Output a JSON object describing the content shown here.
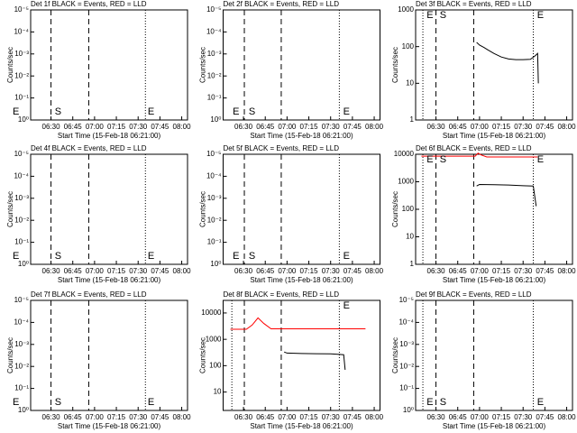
{
  "chart_data": [
    {
      "type": "line",
      "title": "Det 1f BLACK = Events, RED = LLD",
      "ylabel": "Counts/sec",
      "xlabel": "Start Time (15-Feb-18 06:21:00)",
      "log": true,
      "xlim": [
        376,
        484
      ],
      "xticks": [
        {
          "value": 390,
          "label": "06:30"
        },
        {
          "value": 405,
          "label": "06:45"
        },
        {
          "value": 420,
          "label": "07:00"
        },
        {
          "value": 435,
          "label": "07:15"
        },
        {
          "value": 450,
          "label": "07:30"
        },
        {
          "value": 465,
          "label": "07:45"
        },
        {
          "value": 480,
          "label": "08:00"
        }
      ],
      "ylim": [
        1,
        1e-05
      ],
      "yticks": [
        {
          "value": 1,
          "label": "10⁰"
        },
        {
          "value": 0.1,
          "label": "10⁻¹"
        },
        {
          "value": 0.01,
          "label": "10⁻²"
        },
        {
          "value": 0.001,
          "label": "10⁻³"
        },
        {
          "value": 0.0001,
          "label": "10⁻⁴"
        },
        {
          "value": 1e-05,
          "label": "10⁻⁵"
        }
      ],
      "vlines": [
        {
          "x": 390,
          "style": "dashed"
        },
        {
          "x": 416,
          "style": "dashed"
        },
        {
          "x": 455,
          "style": "dotted"
        }
      ],
      "annotations": [
        {
          "text": "E",
          "x": 363,
          "pos": "bottom"
        },
        {
          "text": "S",
          "x": 392,
          "pos": "bottom"
        },
        {
          "text": "E",
          "x": 456,
          "pos": "bottom"
        }
      ],
      "series": []
    },
    {
      "type": "line",
      "title": "Det 2f BLACK = Events, RED = LLD",
      "ylabel": "Counts/sec",
      "xlabel": "Start Time (15-Feb-18 06:21:00)",
      "log": true,
      "xlim": [
        376,
        484
      ],
      "xticks": [
        {
          "value": 390,
          "label": "06:30"
        },
        {
          "value": 405,
          "label": "06:45"
        },
        {
          "value": 420,
          "label": "07:00"
        },
        {
          "value": 435,
          "label": "07:15"
        },
        {
          "value": 450,
          "label": "07:30"
        },
        {
          "value": 465,
          "label": "07:45"
        },
        {
          "value": 480,
          "label": "08:00"
        }
      ],
      "ylim": [
        1,
        1e-05
      ],
      "yticks": [
        {
          "value": 1,
          "label": "10⁰"
        },
        {
          "value": 0.1,
          "label": "10⁻¹"
        },
        {
          "value": 0.01,
          "label": "10⁻²"
        },
        {
          "value": 0.001,
          "label": "10⁻³"
        },
        {
          "value": 0.0001,
          "label": "10⁻⁴"
        },
        {
          "value": 1e-05,
          "label": "10⁻⁵"
        }
      ],
      "vlines": [
        {
          "x": 390.6,
          "style": "dashed"
        },
        {
          "x": 416,
          "style": "dashed"
        },
        {
          "x": 456,
          "style": "dotted"
        }
      ],
      "annotations": [
        {
          "text": "E",
          "x": 382,
          "pos": "bottom"
        },
        {
          "text": "S",
          "x": 393,
          "pos": "bottom"
        },
        {
          "text": "E",
          "x": 458,
          "pos": "bottom"
        }
      ],
      "series": []
    },
    {
      "type": "line",
      "title": "Det 3f BLACK = Events, RED = LLD",
      "ylabel": "Counts/sec",
      "xlabel": "Start Time (15-Feb-18 06:21:00)",
      "log": true,
      "xlim": [
        376,
        484
      ],
      "xticks": [
        {
          "value": 390,
          "label": "06:30"
        },
        {
          "value": 405,
          "label": "06:45"
        },
        {
          "value": 420,
          "label": "07:00"
        },
        {
          "value": 435,
          "label": "07:15"
        },
        {
          "value": 450,
          "label": "07:30"
        },
        {
          "value": 465,
          "label": "07:45"
        },
        {
          "value": 480,
          "label": "08:00"
        }
      ],
      "ylim": [
        1,
        1000
      ],
      "yticks": [
        1,
        10,
        100,
        1000
      ],
      "vlines": [
        {
          "x": 381,
          "style": "dotted"
        },
        {
          "x": 390,
          "style": "dashed"
        },
        {
          "x": 416,
          "style": "dashed"
        },
        {
          "x": 457,
          "style": "dotted"
        }
      ],
      "annotations": [
        {
          "text": "E",
          "x": 383,
          "pos": "top"
        },
        {
          "text": "S",
          "x": 392,
          "pos": "top"
        },
        {
          "text": "E",
          "x": 459,
          "pos": "top"
        }
      ],
      "series": [
        {
          "color": "#000000",
          "x": [
            418,
            420,
            423,
            426,
            430,
            435,
            440,
            445,
            450,
            455,
            458,
            460,
            460.5
          ],
          "values": [
            130,
            110,
            95,
            80,
            65,
            52,
            46,
            44,
            44,
            45,
            55,
            65,
            10
          ]
        }
      ]
    },
    {
      "type": "line",
      "title": "Det 4f BLACK = Events, RED = LLD",
      "ylabel": "Counts/sec",
      "xlabel": "Start Time (15-Feb-18 06:21:00)",
      "log": true,
      "xlim": [
        376,
        484
      ],
      "xticks": [
        {
          "value": 390,
          "label": "06:30"
        },
        {
          "value": 405,
          "label": "06:45"
        },
        {
          "value": 420,
          "label": "07:00"
        },
        {
          "value": 435,
          "label": "07:15"
        },
        {
          "value": 450,
          "label": "07:30"
        },
        {
          "value": 465,
          "label": "07:45"
        },
        {
          "value": 480,
          "label": "08:00"
        }
      ],
      "ylim": [
        1,
        1e-05
      ],
      "yticks": [
        {
          "value": 1,
          "label": "10⁰"
        },
        {
          "value": 0.1,
          "label": "10⁻¹"
        },
        {
          "value": 0.01,
          "label": "10⁻²"
        },
        {
          "value": 0.001,
          "label": "10⁻³"
        },
        {
          "value": 0.0001,
          "label": "10⁻⁴"
        },
        {
          "value": 1e-05,
          "label": "10⁻⁵"
        }
      ],
      "vlines": [
        {
          "x": 390,
          "style": "dashed"
        },
        {
          "x": 416,
          "style": "dashed"
        },
        {
          "x": 455,
          "style": "dotted"
        }
      ],
      "annotations": [
        {
          "text": "E",
          "x": 363,
          "pos": "bottom"
        },
        {
          "text": "S",
          "x": 392,
          "pos": "bottom"
        },
        {
          "text": "E",
          "x": 456,
          "pos": "bottom"
        }
      ],
      "series": []
    },
    {
      "type": "line",
      "title": "Det 5f BLACK = Events, RED = LLD",
      "ylabel": "Counts/sec",
      "xlabel": "Start Time (15-Feb-18 06:21:00)",
      "log": true,
      "xlim": [
        376,
        484
      ],
      "xticks": [
        {
          "value": 390,
          "label": "06:30"
        },
        {
          "value": 405,
          "label": "06:45"
        },
        {
          "value": 420,
          "label": "07:00"
        },
        {
          "value": 435,
          "label": "07:15"
        },
        {
          "value": 450,
          "label": "07:30"
        },
        {
          "value": 465,
          "label": "07:45"
        },
        {
          "value": 480,
          "label": "08:00"
        }
      ],
      "ylim": [
        1,
        1e-05
      ],
      "yticks": [
        {
          "value": 1,
          "label": "10⁰"
        },
        {
          "value": 0.1,
          "label": "10⁻¹"
        },
        {
          "value": 0.01,
          "label": "10⁻²"
        },
        {
          "value": 0.001,
          "label": "10⁻³"
        },
        {
          "value": 0.0001,
          "label": "10⁻⁴"
        },
        {
          "value": 1e-05,
          "label": "10⁻⁵"
        }
      ],
      "vlines": [
        {
          "x": 390.6,
          "style": "dashed"
        },
        {
          "x": 416,
          "style": "dashed"
        },
        {
          "x": 456,
          "style": "dotted"
        }
      ],
      "annotations": [
        {
          "text": "E",
          "x": 382,
          "pos": "bottom"
        },
        {
          "text": "S",
          "x": 393,
          "pos": "bottom"
        },
        {
          "text": "E",
          "x": 458,
          "pos": "bottom"
        }
      ],
      "series": []
    },
    {
      "type": "line",
      "title": "Det 6f BLACK = Events, RED = LLD",
      "ylabel": "Counts/sec",
      "xlabel": "Start Time (15-Feb-18 06:21:00)",
      "log": true,
      "xlim": [
        376,
        484
      ],
      "xticks": [
        {
          "value": 390,
          "label": "06:30"
        },
        {
          "value": 405,
          "label": "06:45"
        },
        {
          "value": 420,
          "label": "07:00"
        },
        {
          "value": 435,
          "label": "07:15"
        },
        {
          "value": 450,
          "label": "07:30"
        },
        {
          "value": 465,
          "label": "07:45"
        },
        {
          "value": 480,
          "label": "08:00"
        }
      ],
      "ylim": [
        1,
        10000
      ],
      "yticks": [
        1,
        10,
        100,
        1000,
        10000
      ],
      "vlines": [
        {
          "x": 381,
          "style": "dotted"
        },
        {
          "x": 390,
          "style": "dashed"
        },
        {
          "x": 416,
          "style": "dashed"
        },
        {
          "x": 457,
          "style": "dotted"
        }
      ],
      "annotations": [
        {
          "text": "E",
          "x": 383,
          "pos": "top"
        },
        {
          "text": "S",
          "x": 392,
          "pos": "top"
        },
        {
          "text": "E",
          "x": 459,
          "pos": "top"
        }
      ],
      "series": [
        {
          "color": "#ff0000",
          "x": [
            380,
            417,
            419,
            421,
            425,
            460
          ],
          "values": [
            8500,
            8500,
            11000,
            9500,
            8000,
            8000
          ]
        },
        {
          "color": "#000000",
          "x": [
            418,
            420,
            430,
            440,
            450,
            457,
            458,
            459
          ],
          "values": [
            700,
            800,
            780,
            760,
            720,
            700,
            300,
            130
          ]
        }
      ]
    },
    {
      "type": "line",
      "title": "Det 7f BLACK = Events, RED = LLD",
      "ylabel": "Counts/sec",
      "xlabel": "Start Time (15-Feb-18 06:21:00)",
      "log": true,
      "xlim": [
        376,
        484
      ],
      "xticks": [
        {
          "value": 390,
          "label": "06:30"
        },
        {
          "value": 405,
          "label": "06:45"
        },
        {
          "value": 420,
          "label": "07:00"
        },
        {
          "value": 435,
          "label": "07:15"
        },
        {
          "value": 450,
          "label": "07:30"
        },
        {
          "value": 465,
          "label": "07:45"
        },
        {
          "value": 480,
          "label": "08:00"
        }
      ],
      "ylim": [
        1,
        1e-05
      ],
      "yticks": [
        {
          "value": 1,
          "label": "10⁰"
        },
        {
          "value": 0.1,
          "label": "10⁻¹"
        },
        {
          "value": 0.01,
          "label": "10⁻²"
        },
        {
          "value": 0.001,
          "label": "10⁻³"
        },
        {
          "value": 0.0001,
          "label": "10⁻⁴"
        },
        {
          "value": 1e-05,
          "label": "10⁻⁵"
        }
      ],
      "vlines": [
        {
          "x": 390,
          "style": "dashed"
        },
        {
          "x": 416,
          "style": "dashed"
        },
        {
          "x": 455,
          "style": "dotted"
        }
      ],
      "annotations": [
        {
          "text": "E",
          "x": 363,
          "pos": "bottom"
        },
        {
          "text": "S",
          "x": 392,
          "pos": "bottom"
        },
        {
          "text": "E",
          "x": 456,
          "pos": "bottom"
        }
      ],
      "series": []
    },
    {
      "type": "line",
      "title": "Det 8f BLACK = Events, RED = LLD",
      "ylabel": "Counts/sec",
      "xlabel": "Start Time (15-Feb-18 06:21:00)",
      "log": true,
      "xlim": [
        376,
        484
      ],
      "xticks": [
        {
          "value": 390,
          "label": "06:30"
        },
        {
          "value": 405,
          "label": "06:45"
        },
        {
          "value": 420,
          "label": "07:00"
        },
        {
          "value": 435,
          "label": "07:15"
        },
        {
          "value": 450,
          "label": "07:30"
        },
        {
          "value": 465,
          "label": "07:45"
        },
        {
          "value": 480,
          "label": "08:00"
        }
      ],
      "ylim": [
        2,
        30000
      ],
      "yticks": [
        10,
        100,
        1000,
        10000
      ],
      "vlines": [
        {
          "x": 382,
          "style": "dotted"
        },
        {
          "x": 390.6,
          "style": "dashed"
        },
        {
          "x": 416,
          "style": "dashed"
        },
        {
          "x": 456,
          "style": "dotted"
        }
      ],
      "annotations": [
        {
          "text": "E",
          "x": 458,
          "pos": "top"
        }
      ],
      "series": [
        {
          "color": "#ff0000",
          "x": [
            381,
            392,
            396,
            400,
            404,
            409,
            474
          ],
          "values": [
            2400,
            2400,
            3500,
            6500,
            4000,
            2500,
            2500
          ]
        },
        {
          "color": "#000000",
          "x": [
            418,
            420,
            430,
            440,
            450,
            455,
            459,
            460
          ],
          "values": [
            330,
            300,
            290,
            285,
            280,
            270,
            260,
            70
          ]
        }
      ]
    },
    {
      "type": "line",
      "title": "Det 9f BLACK = Events, RED = LLD",
      "ylabel": "Counts/sec",
      "xlabel": "Start Time (15-Feb-18 06:21:00)",
      "log": true,
      "xlim": [
        376,
        484
      ],
      "xticks": [
        {
          "value": 390,
          "label": "06:30"
        },
        {
          "value": 405,
          "label": "06:45"
        },
        {
          "value": 420,
          "label": "07:00"
        },
        {
          "value": 435,
          "label": "07:15"
        },
        {
          "value": 450,
          "label": "07:30"
        },
        {
          "value": 465,
          "label": "07:45"
        },
        {
          "value": 480,
          "label": "08:00"
        }
      ],
      "ylim": [
        1,
        1e-05
      ],
      "yticks": [
        {
          "value": 1,
          "label": "10⁰"
        },
        {
          "value": 0.1,
          "label": "10⁻¹"
        },
        {
          "value": 0.01,
          "label": "10⁻²"
        },
        {
          "value": 0.001,
          "label": "10⁻³"
        },
        {
          "value": 0.0001,
          "label": "10⁻⁴"
        },
        {
          "value": 1e-05,
          "label": "10⁻⁵"
        }
      ],
      "vlines": [
        {
          "x": 381,
          "style": "dotted"
        },
        {
          "x": 390,
          "style": "dashed"
        },
        {
          "x": 416,
          "style": "dashed"
        },
        {
          "x": 457,
          "style": "dotted"
        }
      ],
      "annotations": [
        {
          "text": "E",
          "x": 383,
          "pos": "bottom"
        },
        {
          "text": "S",
          "x": 392,
          "pos": "bottom"
        },
        {
          "text": "E",
          "x": 459,
          "pos": "bottom"
        }
      ],
      "series": []
    }
  ]
}
